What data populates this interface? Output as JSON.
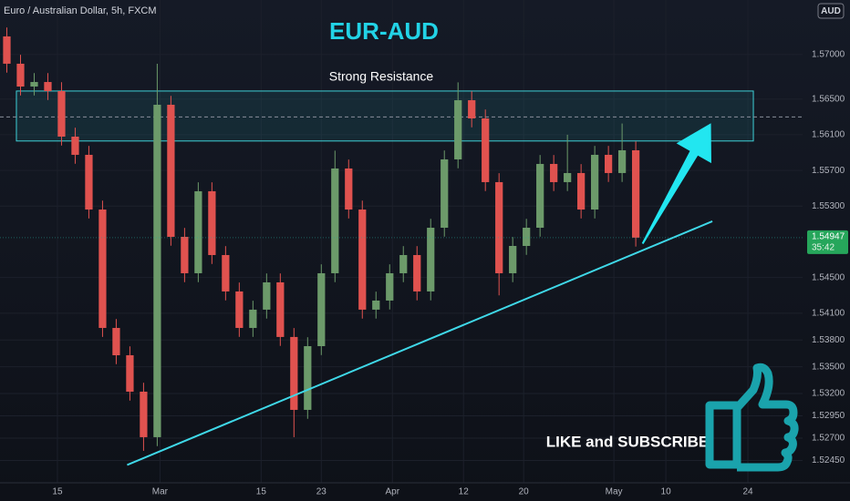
{
  "chart_data": {
    "type": "candlestick",
    "title": "EUR-AUD",
    "subtitle": "Euro / Australian Dollar, 5h, FXCM",
    "currency": "AUD",
    "up_color": "#6c9a6a",
    "down_color": "#e0524f",
    "open": [
      1.57202,
      1.56896,
      1.5664,
      1.56691,
      1.56589,
      1.56079,
      1.55875,
      1.55262,
      1.53935,
      1.53629,
      1.53221,
      1.52711,
      1.56436,
      1.54956,
      1.54548,
      1.55467,
      1.54752,
      1.54344,
      1.53935,
      1.5414,
      1.54446,
      1.53834,
      1.53017,
      1.53731,
      1.54548,
      1.55722,
      1.55262,
      1.5414,
      1.54242,
      1.54548,
      1.54752,
      1.54344,
      1.55058,
      1.55824,
      1.56487,
      1.56283,
      1.55569,
      1.54548,
      1.54854,
      1.55058,
      1.55773,
      1.55569,
      1.55671,
      1.55262,
      1.55875,
      1.55671,
      1.55926
    ],
    "high": [
      1.57302,
      1.56996,
      1.56791,
      1.56791,
      1.56689,
      1.56179,
      1.55975,
      1.55362,
      1.54035,
      1.53729,
      1.53321,
      1.56896,
      1.56536,
      1.55056,
      1.55567,
      1.55567,
      1.54852,
      1.54444,
      1.5424,
      1.54546,
      1.54546,
      1.53934,
      1.53831,
      1.54648,
      1.55922,
      1.55822,
      1.55362,
      1.54342,
      1.54648,
      1.54852,
      1.54852,
      1.55158,
      1.55924,
      1.56687,
      1.56587,
      1.56383,
      1.55669,
      1.54954,
      1.55158,
      1.55873,
      1.55873,
      1.561,
      1.55771,
      1.55975,
      1.55975,
      1.56226,
      1.56026
    ],
    "low": [
      1.56796,
      1.5654,
      1.5654,
      1.56489,
      1.55979,
      1.55775,
      1.55162,
      1.53835,
      1.53529,
      1.53121,
      1.52558,
      1.52611,
      1.54856,
      1.54448,
      1.54448,
      1.54652,
      1.54244,
      1.53835,
      1.53835,
      1.5404,
      1.53734,
      1.52711,
      1.52917,
      1.53631,
      1.54448,
      1.55162,
      1.5404,
      1.5404,
      1.54142,
      1.54448,
      1.54244,
      1.54244,
      1.54958,
      1.55724,
      1.56183,
      1.55469,
      1.543,
      1.54448,
      1.54754,
      1.54958,
      1.55469,
      1.55469,
      1.55162,
      1.55162,
      1.55571,
      1.55571,
      1.54847
    ],
    "close": [
      1.56896,
      1.5664,
      1.56691,
      1.56589,
      1.56079,
      1.55875,
      1.55262,
      1.53935,
      1.53629,
      1.53221,
      1.52711,
      1.56436,
      1.54956,
      1.54548,
      1.55467,
      1.54752,
      1.54344,
      1.53935,
      1.5414,
      1.54446,
      1.53834,
      1.53017,
      1.53731,
      1.54548,
      1.55722,
      1.55262,
      1.5414,
      1.54242,
      1.54548,
      1.54752,
      1.54344,
      1.55058,
      1.55824,
      1.56487,
      1.56283,
      1.55569,
      1.54548,
      1.54854,
      1.55058,
      1.55773,
      1.55569,
      1.55671,
      1.55262,
      1.55875,
      1.55671,
      1.55926,
      1.54947
    ],
    "xlim": [
      -0.5,
      58.2
    ],
    "xticks": [
      {
        "value": 3.7,
        "label": "15"
      },
      {
        "value": 11.2,
        "label": "Mar"
      },
      {
        "value": 18.6,
        "label": "15"
      },
      {
        "value": 23,
        "label": "23"
      },
      {
        "value": 28.2,
        "label": "Apr"
      },
      {
        "value": 33.4,
        "label": "12"
      },
      {
        "value": 37.8,
        "label": "20"
      },
      {
        "value": 44.4,
        "label": "May"
      },
      {
        "value": 48.2,
        "label": "10"
      },
      {
        "value": 54.2,
        "label": "24"
      }
    ],
    "ylim": [
      1.522,
      1.5761
    ],
    "yticks": [
      {
        "value": 1.57,
        "label": "1.57000"
      },
      {
        "value": 1.565,
        "label": "1.56500"
      },
      {
        "value": 1.561,
        "label": "1.56100"
      },
      {
        "value": 1.557,
        "label": "1.55700"
      },
      {
        "value": 1.553,
        "label": "1.55300"
      },
      {
        "value": 1.545,
        "label": "1.54500"
      },
      {
        "value": 1.541,
        "label": "1.54100"
      },
      {
        "value": 1.538,
        "label": "1.53800"
      },
      {
        "value": 1.535,
        "label": "1.53500"
      },
      {
        "value": 1.532,
        "label": "1.53200"
      },
      {
        "value": 1.5295,
        "label": "1.52950"
      },
      {
        "value": 1.527,
        "label": "1.52700"
      },
      {
        "value": 1.5245,
        "label": "1.52450"
      }
    ],
    "last_price": {
      "value": 1.54947,
      "countdown": "35:42"
    },
    "zone": {
      "label": "Strong Resistance",
      "x": [
        0.7,
        54.6
      ],
      "y": [
        1.5603,
        1.5659
      ],
      "mid": 1.563
    },
    "trendline": {
      "x": [
        8.8,
        51.6
      ],
      "y": [
        1.524,
        1.5513
      ]
    },
    "arrow": {
      "x": [
        46.5,
        51.5
      ],
      "y": [
        1.5488,
        1.5623
      ]
    },
    "call_to_action": "LIKE and SUBSCRIBE"
  }
}
